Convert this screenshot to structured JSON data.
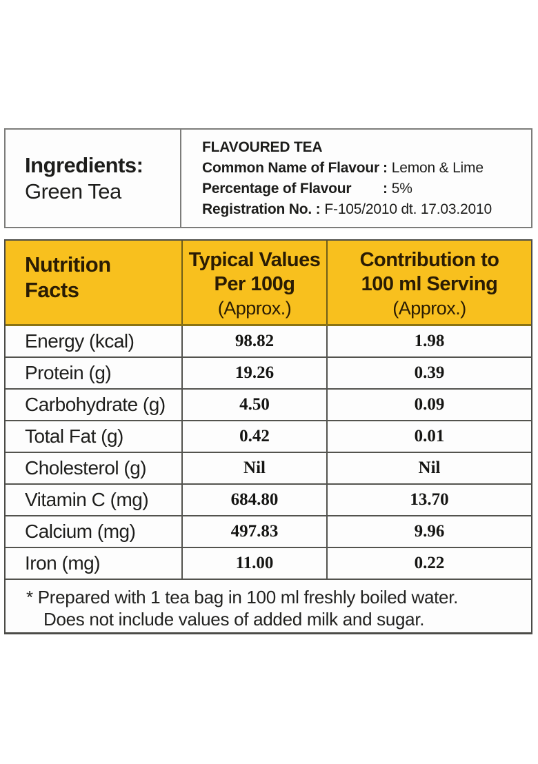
{
  "colors": {
    "header_yellow": "#F8C01E",
    "header_text": "#2A1C04",
    "border_dark": "#4B4B47",
    "border_gray": "#7C7C7A",
    "body_text": "#1E1E1C"
  },
  "ingredients": {
    "heading": "Ingredients:",
    "value": "Green Tea"
  },
  "flavour": {
    "title": "FLAVOURED TEA",
    "rows": [
      {
        "label": "Common Name of Flavour",
        "sep": ":",
        "value": "Lemon & Lime"
      },
      {
        "label": "Percentage of Flavour",
        "sep": ":",
        "value": "5%"
      },
      {
        "label": "Registration No. :",
        "sep": "",
        "value": "F-105/2010 dt. 17.03.2010"
      }
    ]
  },
  "nutrition": {
    "header": {
      "col1_line1": "Nutrition",
      "col1_line2": "Facts",
      "col2_line1": "Typical Values",
      "col2_line2": "Per 100g",
      "col2_line3": "(Approx.)",
      "col3_line1": "Contribution to",
      "col3_line2": "100 ml Serving",
      "col3_line3": "(Approx.)"
    },
    "rows": [
      {
        "nutrient": "Energy (kcal)",
        "per_100g": "98.82",
        "per_serving": "1.98"
      },
      {
        "nutrient": "Protein (g)",
        "per_100g": "19.26",
        "per_serving": "0.39"
      },
      {
        "nutrient": "Carbohydrate (g)",
        "per_100g": "4.50",
        "per_serving": "0.09"
      },
      {
        "nutrient": "Total Fat (g)",
        "per_100g": "0.42",
        "per_serving": "0.01"
      },
      {
        "nutrient": "Cholesterol (g)",
        "per_100g": "Nil",
        "per_serving": "Nil"
      },
      {
        "nutrient": "Vitamin C (mg)",
        "per_100g": "684.80",
        "per_serving": "13.70"
      },
      {
        "nutrient": "Calcium (mg)",
        "per_100g": "497.83",
        "per_serving": "9.96"
      },
      {
        "nutrient": "Iron (mg)",
        "per_100g": "11.00",
        "per_serving": "0.22"
      }
    ],
    "footnote_line1": "* Prepared with 1 tea bag in 100 ml freshly boiled water.",
    "footnote_line2": "Does not include values of added milk and sugar."
  }
}
